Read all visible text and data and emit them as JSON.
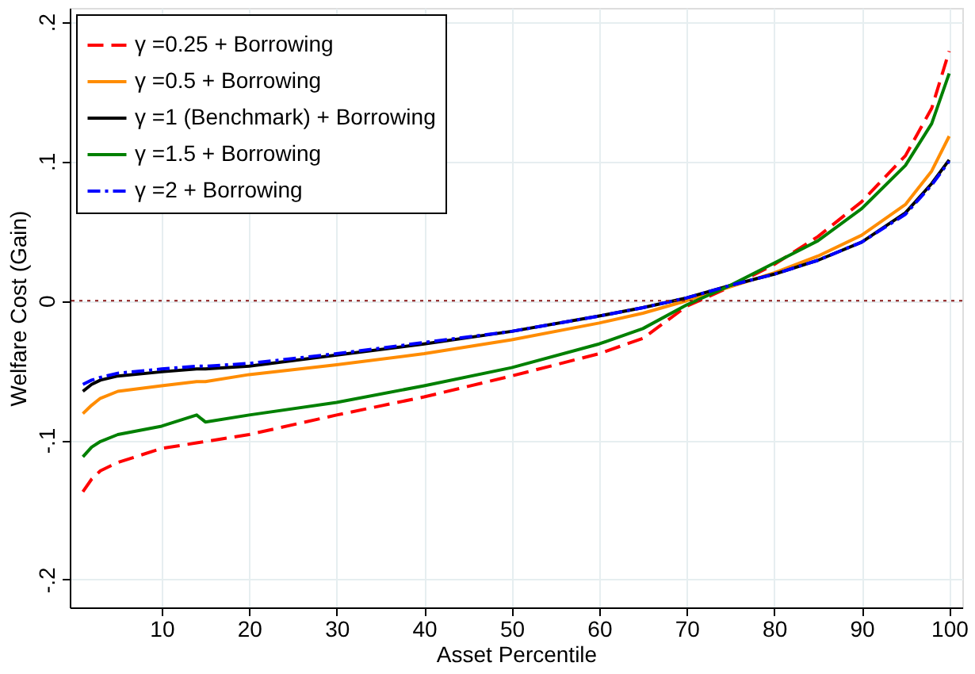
{
  "chart_data": {
    "type": "line",
    "xlabel": "Asset Percentile",
    "ylabel": "Welfare Cost (Gain)",
    "x": [
      1,
      2,
      3,
      5,
      10,
      14,
      15,
      20,
      30,
      40,
      50,
      60,
      65,
      70,
      75,
      80,
      85,
      90,
      95,
      98,
      100
    ],
    "series": [
      {
        "name": "γ =0.25 + Borrowing",
        "color": "#ff0000",
        "line_style": "dashed",
        "values": [
          -0.137,
          -0.128,
          -0.122,
          -0.116,
          -0.106,
          -0.102,
          -0.101,
          -0.096,
          -0.082,
          -0.069,
          -0.054,
          -0.038,
          -0.027,
          -0.004,
          0.01,
          0.026,
          0.046,
          0.071,
          0.104,
          0.138,
          0.179
        ]
      },
      {
        "name": "γ =0.5 + Borrowing",
        "color": "#ff8c00",
        "line_style": "solid",
        "values": [
          -0.081,
          -0.075,
          -0.07,
          -0.065,
          -0.061,
          -0.058,
          -0.058,
          -0.053,
          -0.046,
          -0.038,
          -0.028,
          -0.016,
          -0.009,
          0.0,
          0.01,
          0.02,
          0.032,
          0.047,
          0.069,
          0.093,
          0.118
        ]
      },
      {
        "name": "γ =1 (Benchmark) + Borrowing",
        "color": "#000000",
        "line_style": "solid",
        "values": [
          -0.065,
          -0.06,
          -0.057,
          -0.054,
          -0.051,
          -0.049,
          -0.049,
          -0.047,
          -0.039,
          -0.031,
          -0.022,
          -0.011,
          -0.005,
          0.002,
          0.011,
          0.019,
          0.029,
          0.042,
          0.063,
          0.084,
          0.101
        ]
      },
      {
        "name": "γ =1.5 + Borrowing",
        "color": "#008000",
        "line_style": "solid",
        "values": [
          -0.112,
          -0.105,
          -0.101,
          -0.096,
          -0.09,
          -0.082,
          -0.087,
          -0.082,
          -0.073,
          -0.061,
          -0.048,
          -0.031,
          -0.02,
          -0.003,
          0.011,
          0.027,
          0.043,
          0.066,
          0.097,
          0.127,
          0.163
        ]
      },
      {
        "name": "γ =2 + Borrowing",
        "color": "#0000ff",
        "line_style": "dashdot",
        "values": [
          -0.06,
          -0.057,
          -0.055,
          -0.052,
          -0.049,
          -0.047,
          -0.047,
          -0.045,
          -0.038,
          -0.03,
          -0.022,
          -0.011,
          -0.005,
          0.002,
          0.011,
          0.019,
          0.029,
          0.042,
          0.062,
          0.083,
          0.1
        ]
      }
    ],
    "xlim": [
      -0.5,
      101.5
    ],
    "ylim": [
      -0.22,
      0.21
    ],
    "xticks": [
      10,
      20,
      30,
      40,
      50,
      60,
      70,
      80,
      90,
      100
    ],
    "yticks": [
      {
        "value": -0.2,
        "label": "-.2"
      },
      {
        "value": -0.1,
        "label": "-.1"
      },
      0,
      {
        "value": 0.1,
        "label": ".1"
      },
      {
        "value": 0.2,
        "label": ".2"
      }
    ],
    "ref_lines": [
      {
        "axis": "y",
        "value": 0,
        "color": "#8b1a1a",
        "line_style": "dotted"
      }
    ],
    "grid": true,
    "legend": "top left"
  }
}
